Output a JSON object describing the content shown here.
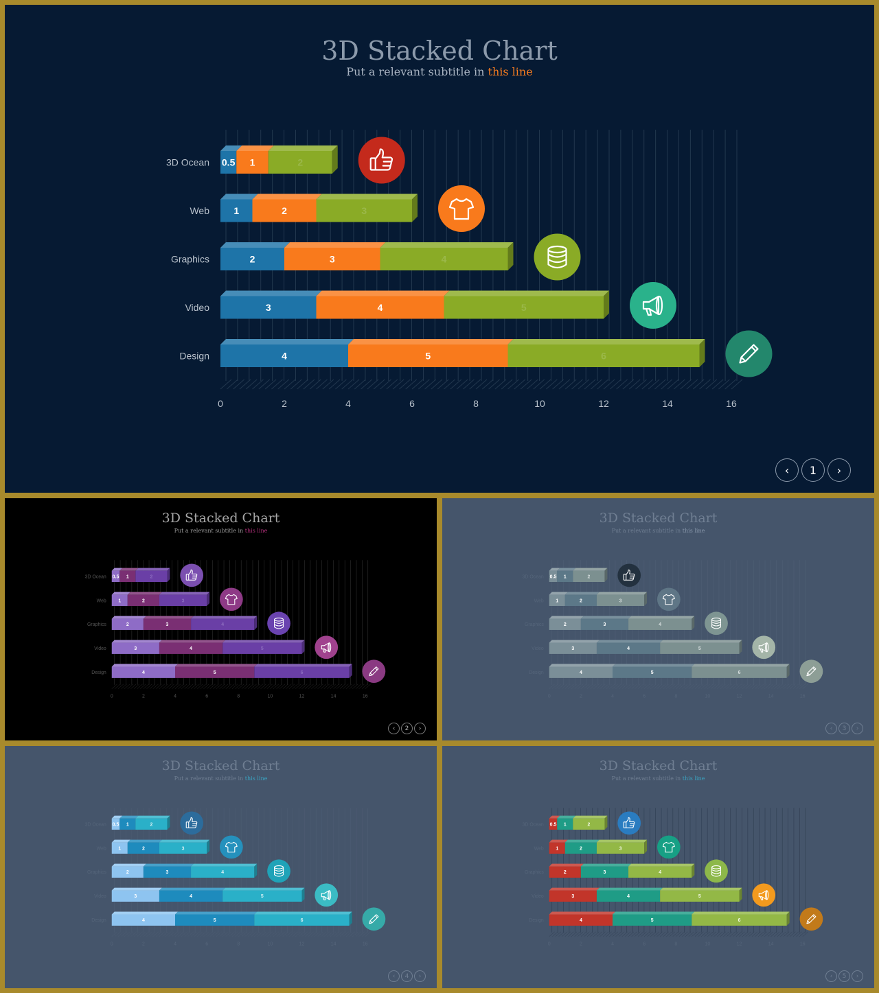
{
  "slides": [
    {
      "id": "main",
      "variant": "dark-navy",
      "title": "3D Stacked Chart",
      "subtitle_prefix": "Put a relevant subtitle in ",
      "subtitle_highlight": "this line",
      "page_number": "1",
      "colors": {
        "bg": "#061a33",
        "title": "#8c9aab",
        "subtitle": "#a9b4c2",
        "highlight": "#f57c20",
        "axis_text": "#b9c2cc",
        "grid": "#23384f",
        "series": [
          "#1e74a8",
          "#f97a1c",
          "#8aab26"
        ],
        "segment_label": [
          "#ffffff",
          "#ffffff",
          "#9bb84a"
        ],
        "icon_bg": [
          "#c42a1c",
          "#f97a1c",
          "#8aab26",
          "#2ab28b",
          "#23876c"
        ],
        "nav_border": "#8c9aab",
        "nav_text": "#ffffff"
      }
    },
    {
      "id": "thumb-2",
      "variant": "black",
      "title": "3D Stacked Chart",
      "subtitle_prefix": "Put a relevant subtitle in ",
      "subtitle_highlight": "this line",
      "page_number": "2",
      "colors": {
        "bg": "#000000",
        "title": "#a6a6a6",
        "subtitle": "#9a9a9a",
        "highlight": "#b0307a",
        "axis_text": "#555555",
        "grid": "#2e2e2e",
        "series": [
          "#8e6cc6",
          "#7a2f73",
          "#6a3fa6"
        ],
        "segment_label": [
          "#ffffff",
          "#ffffff",
          "#8c6cbf"
        ],
        "icon_bg": [
          "#7b4fb0",
          "#8e3a86",
          "#6a43b0",
          "#a0428e",
          "#8a3a82"
        ],
        "nav_border": "#777777",
        "nav_text": "#bbbbbb"
      }
    },
    {
      "id": "thumb-3",
      "variant": "slate",
      "title": "3D Stacked Chart",
      "subtitle_prefix": "Put a relevant subtitle in ",
      "subtitle_highlight": "this line",
      "page_number": "3",
      "colors": {
        "bg": "#45556b",
        "title": "#6f7e92",
        "subtitle": "#6f7e92",
        "highlight": "#8796aa",
        "axis_text": "#55657a",
        "grid": "#4f5f75",
        "series": [
          "#7b8f98",
          "#5c7888",
          "#7c9090"
        ],
        "segment_label": [
          "#ffffff",
          "#ffffff",
          "#d5dddd"
        ],
        "icon_bg": [
          "#23313f",
          "#5f7686",
          "#7e9592",
          "#a4b5a8",
          "#8d9e96"
        ],
        "nav_border": "#6f7e92",
        "nav_text": "#6f7e92"
      }
    },
    {
      "id": "thumb-4",
      "variant": "slate-blue",
      "title": "3D Stacked Chart",
      "subtitle_prefix": "Put a relevant subtitle in ",
      "subtitle_highlight": "this line",
      "page_number": "4",
      "colors": {
        "bg": "#45556b",
        "title": "#6f7e92",
        "subtitle": "#6f7e92",
        "highlight": "#3aa4c2",
        "axis_text": "#55657a",
        "grid": "#4d5d73",
        "series": [
          "#8ec4f0",
          "#1e8bbd",
          "#2ab0c8"
        ],
        "segment_label": [
          "#ffffff",
          "#ffffff",
          "#d8f0f4"
        ],
        "icon_bg": [
          "#2c6c9c",
          "#2591bd",
          "#1fa3b8",
          "#3bbcc4",
          "#36aaa8"
        ],
        "nav_border": "#6f7e92",
        "nav_text": "#6f7e92"
      }
    },
    {
      "id": "thumb-5",
      "variant": "slate-multicolor",
      "title": "3D Stacked Chart",
      "subtitle_prefix": "Put a relevant subtitle in ",
      "subtitle_highlight": "this line",
      "page_number": "5",
      "colors": {
        "bg": "#45556b",
        "title": "#6f7e92",
        "subtitle": "#6f7e92",
        "highlight": "#3aa4c2",
        "axis_text": "#55657a",
        "grid": "#2f3e52",
        "series": [
          "#c2352a",
          "#1f9c86",
          "#93b846"
        ],
        "segment_label": [
          "#ffffff",
          "#ffffff",
          "#f1f7e3"
        ],
        "icon_bg": [
          "#2a7cc0",
          "#17a085",
          "#8db84a",
          "#f39a1e",
          "#c27a1a"
        ],
        "nav_border": "#6f7e92",
        "nav_text": "#6f7e92"
      }
    }
  ],
  "chart_data": {
    "type": "bar",
    "orientation": "horizontal",
    "stacked": true,
    "style": "3d",
    "title": "3D Stacked Chart",
    "subtitle": "Put a relevant subtitle in this line",
    "categories": [
      "3D Ocean",
      "Web",
      "Graphics",
      "Video",
      "Design"
    ],
    "series": [
      {
        "values": [
          0.5,
          1,
          2,
          3,
          4
        ]
      },
      {
        "values": [
          1,
          2,
          3,
          4,
          5
        ]
      },
      {
        "values": [
          2,
          3,
          4,
          5,
          6
        ]
      }
    ],
    "xlim": [
      0,
      16
    ],
    "xticks": [
      0,
      2,
      4,
      6,
      8,
      10,
      12,
      14,
      16
    ],
    "vertical_gridlines": true,
    "category_icons": [
      "thumbs-up-icon",
      "tshirt-icon",
      "database-icon",
      "megaphone-icon",
      "pencil-icon"
    ]
  }
}
